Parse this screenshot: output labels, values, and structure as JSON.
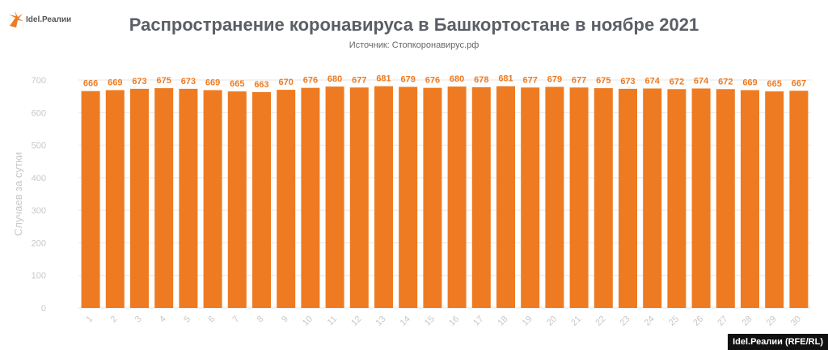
{
  "logo_text": "Idel.Реалии",
  "credit": "Idel.Реалии (RFE/RL)",
  "colors": {
    "bar": "#ee7b22",
    "label": "#ee7b22",
    "grid": "#e6e6e6",
    "axis_text": "#c8c8c8"
  },
  "chart_data": {
    "type": "bar",
    "title": "Распространение коронавируса в Башкортостане в ноябре 2021",
    "subtitle": "Источник: Стопкоронавирус.рф",
    "xlabel": "",
    "ylabel": "Случаев за сутки",
    "ylim": [
      0,
      700
    ],
    "yticks": [
      0,
      100,
      200,
      300,
      400,
      500,
      600,
      700
    ],
    "grid": true,
    "categories": [
      "1",
      "2",
      "3",
      "4",
      "5",
      "6",
      "7",
      "8",
      "9",
      "10",
      "11",
      "12",
      "13",
      "14",
      "15",
      "16",
      "17",
      "18",
      "19",
      "20",
      "21",
      "22",
      "23",
      "24",
      "25",
      "26",
      "27",
      "28",
      "29",
      "30"
    ],
    "values": [
      666,
      669,
      673,
      675,
      673,
      669,
      665,
      663,
      670,
      676,
      680,
      677,
      681,
      679,
      676,
      680,
      678,
      681,
      677,
      679,
      677,
      675,
      673,
      674,
      672,
      674,
      672,
      669,
      665,
      667
    ]
  }
}
